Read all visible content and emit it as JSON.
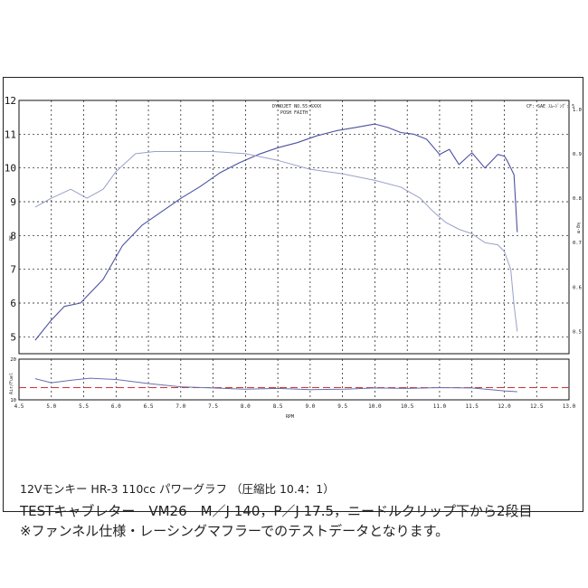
{
  "header": {
    "left_lines": [
      "DYNOJET  NO.55:6XXX",
      "POSH FAITH"
    ],
    "right": "CF: SAE  ｽﾑｰｼﾞﾝｸﾞ: 5"
  },
  "captions": {
    "line1": "12Vモンキー HR-3 110cc パワーグラフ （圧縮比 10.4：1）",
    "line2": "TESTキャブレター　VM26　M／J 140，P／J 17.5，ニードルクリップ下から2段目",
    "line3": "※ファンネル仕様・レーシングマフラーでのテストデータとなります。"
  },
  "colors": {
    "power": "#4a52a0",
    "torque": "#9aa0c8",
    "afr": "#6a6fb0",
    "afr_ref": "#cc3333",
    "grid": "#111111",
    "axis": "#111111"
  },
  "chart_data": [
    {
      "type": "line",
      "title": "",
      "xlabel": "RPM",
      "ylabel": "PS",
      "y2label": "kg-m",
      "x_ticks": [
        "4.5",
        "5.0",
        "5.5",
        "6.0",
        "6.5",
        "7.0",
        "7.5",
        "8.0",
        "8.5",
        "9.0",
        "9.5",
        "10.0",
        "10.5",
        "11.0",
        "11.5",
        "12.0",
        "12.5",
        "13.0"
      ],
      "y_ticks": [
        "5",
        "6",
        "7",
        "8",
        "9",
        "10",
        "11",
        "12"
      ],
      "y2_ticks": [
        "0.5",
        "0.6",
        "0.7",
        "0.8",
        "0.9",
        "1.0"
      ],
      "xlim": [
        4.5,
        13.0
      ],
      "ylim": [
        4.5,
        12.0
      ],
      "y2lim": [
        0.45,
        1.02
      ],
      "grid": true,
      "series": [
        {
          "key": "power",
          "axis": "left",
          "x": [
            4.75,
            5.0,
            5.2,
            5.45,
            5.6,
            5.8,
            6.1,
            6.4,
            6.7,
            7.0,
            7.3,
            7.6,
            7.9,
            8.2,
            8.5,
            8.8,
            9.1,
            9.4,
            9.7,
            10.0,
            10.2,
            10.4,
            10.6,
            10.8,
            11.0,
            11.15,
            11.3,
            11.5,
            11.7,
            11.9,
            12.0,
            12.05,
            12.15,
            12.2
          ],
          "y": [
            4.9,
            5.5,
            5.9,
            6.0,
            6.3,
            6.7,
            7.7,
            8.3,
            8.7,
            9.1,
            9.45,
            9.85,
            10.15,
            10.4,
            10.6,
            10.75,
            10.95,
            11.1,
            11.2,
            11.3,
            11.2,
            11.05,
            11.0,
            10.85,
            10.4,
            10.55,
            10.1,
            10.45,
            10.0,
            10.4,
            10.35,
            10.2,
            9.8,
            8.1
          ]
        },
        {
          "key": "torque",
          "axis": "right",
          "x": [
            4.75,
            5.0,
            5.3,
            5.55,
            5.8,
            6.0,
            6.3,
            6.6,
            7.0,
            7.5,
            8.0,
            8.5,
            9.0,
            9.5,
            10.0,
            10.4,
            10.7,
            10.9,
            11.1,
            11.3,
            11.5,
            11.7,
            11.9,
            12.0,
            12.1,
            12.15,
            12.2
          ],
          "y": [
            0.78,
            0.8,
            0.82,
            0.8,
            0.82,
            0.86,
            0.9,
            0.905,
            0.905,
            0.905,
            0.9,
            0.885,
            0.865,
            0.855,
            0.84,
            0.825,
            0.8,
            0.77,
            0.745,
            0.73,
            0.72,
            0.7,
            0.695,
            0.68,
            0.64,
            0.56,
            0.5
          ]
        }
      ]
    },
    {
      "type": "line",
      "title": "",
      "xlabel": "",
      "ylabel": "Air/Fuel",
      "y_ticks": [
        "20",
        "10"
      ],
      "ylim": [
        10,
        20
      ],
      "xlim": [
        4.5,
        13.0
      ],
      "reference_value": 13.0,
      "series": [
        {
          "key": "afr",
          "x": [
            4.75,
            5.0,
            5.3,
            5.6,
            6.0,
            6.5,
            7.0,
            7.5,
            8.0,
            8.5,
            9.0,
            9.5,
            10.0,
            10.5,
            11.0,
            11.5,
            12.0,
            12.2
          ],
          "y": [
            15.2,
            14.2,
            14.8,
            15.3,
            15.0,
            14.0,
            13.2,
            12.9,
            12.6,
            12.8,
            12.5,
            12.6,
            12.9,
            12.8,
            13.0,
            12.9,
            12.2,
            12.0
          ]
        }
      ]
    }
  ]
}
